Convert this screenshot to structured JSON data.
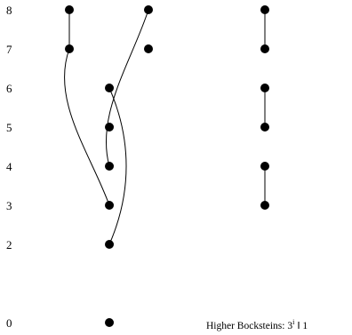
{
  "rows": [
    {
      "degree": 8,
      "label": "8"
    },
    {
      "degree": 7,
      "label": "7"
    },
    {
      "degree": 6,
      "label": "6"
    },
    {
      "degree": 5,
      "label": "5"
    },
    {
      "degree": 4,
      "label": "4"
    },
    {
      "degree": 3,
      "label": "3"
    },
    {
      "degree": 2,
      "label": "2"
    },
    {
      "degree": 0,
      "label": "0"
    }
  ],
  "dots": [
    {
      "id": "c1-8",
      "column": 1,
      "degree": 8
    },
    {
      "id": "c1-7",
      "column": 1,
      "degree": 7
    },
    {
      "id": "c2-6",
      "column": 2,
      "degree": 6
    },
    {
      "id": "c2-5",
      "column": 2,
      "degree": 5
    },
    {
      "id": "c2-4",
      "column": 2,
      "degree": 4
    },
    {
      "id": "c2-3",
      "column": 2,
      "degree": 3
    },
    {
      "id": "c2-2",
      "column": 2,
      "degree": 2
    },
    {
      "id": "c2-0",
      "column": 2,
      "degree": 0
    },
    {
      "id": "c3-8",
      "column": 3,
      "degree": 8
    },
    {
      "id": "c3-7",
      "column": 3,
      "degree": 7
    },
    {
      "id": "c4-8",
      "column": 4,
      "degree": 8
    },
    {
      "id": "c4-7",
      "column": 4,
      "degree": 7
    },
    {
      "id": "c4-6",
      "column": 4,
      "degree": 6
    },
    {
      "id": "c4-5",
      "column": 4,
      "degree": 5
    },
    {
      "id": "c4-4",
      "column": 4,
      "degree": 4
    },
    {
      "id": "c4-3",
      "column": 4,
      "degree": 3
    }
  ],
  "connections": [
    {
      "from": "c1-8",
      "to": "c1-7",
      "style": "straight"
    },
    {
      "from": "c4-8",
      "to": "c4-7",
      "style": "straight"
    },
    {
      "from": "c4-6",
      "to": "c4-5",
      "style": "straight"
    },
    {
      "from": "c4-4",
      "to": "c4-3",
      "style": "straight"
    },
    {
      "from": "c1-7",
      "to": "c2-3",
      "style": "curve"
    },
    {
      "from": "c3-8",
      "to": "c2-4",
      "style": "curve"
    },
    {
      "from": "c2-6",
      "to": "c2-2",
      "style": "curve"
    }
  ],
  "caption": {
    "text": "Higher Bocksteins:  3",
    "superscript": "i",
    "suffix": " ‖ 1"
  }
}
